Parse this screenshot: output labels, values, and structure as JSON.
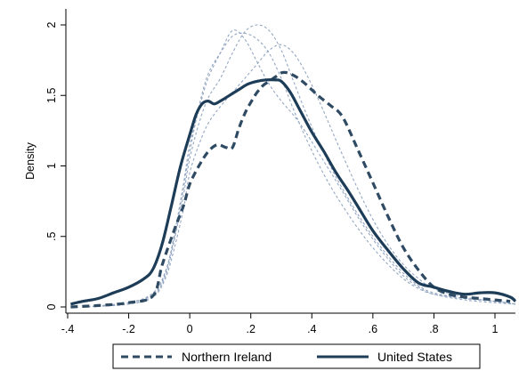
{
  "chart_data": {
    "type": "line",
    "title": "",
    "xlabel": "",
    "ylabel": "Density",
    "xlim": [
      -0.4,
      1.08
    ],
    "ylim": [
      0,
      2.1
    ],
    "x_ticks": [
      -0.4,
      -0.2,
      0,
      0.2,
      0.4,
      0.6,
      0.8,
      1
    ],
    "x_tick_labels": [
      "-.4",
      "-.2",
      "0",
      ".2",
      ".4",
      ".6",
      ".8",
      "1"
    ],
    "y_ticks": [
      0,
      0.5,
      1,
      1.5,
      2
    ],
    "y_tick_labels": [
      "0",
      ".5",
      "1",
      "1.5",
      "2"
    ],
    "grid": false,
    "legend_position": "bottom",
    "series": [
      {
        "name": "Northern Ireland",
        "style": "dashed",
        "color": "#2f4a63",
        "x": [
          -0.39,
          -0.3,
          -0.2,
          -0.12,
          -0.09,
          -0.05,
          -0.02,
          0.0,
          0.03,
          0.06,
          0.09,
          0.12,
          0.14,
          0.16,
          0.18,
          0.2,
          0.22,
          0.24,
          0.26,
          0.28,
          0.3,
          0.32,
          0.35,
          0.38,
          0.42,
          0.46,
          0.5,
          0.55,
          0.6,
          0.65,
          0.7,
          0.75,
          0.8,
          0.85,
          0.9,
          0.95,
          1.0,
          1.05
        ],
        "y": [
          0.0,
          0.01,
          0.03,
          0.08,
          0.3,
          0.55,
          0.72,
          0.87,
          1.0,
          1.1,
          1.15,
          1.13,
          1.13,
          1.26,
          1.37,
          1.45,
          1.52,
          1.57,
          1.6,
          1.63,
          1.66,
          1.66,
          1.63,
          1.58,
          1.5,
          1.43,
          1.35,
          1.12,
          0.88,
          0.64,
          0.42,
          0.26,
          0.14,
          0.09,
          0.07,
          0.06,
          0.05,
          0.04
        ]
      },
      {
        "name": "United States",
        "style": "solid",
        "color": "#1d3c57",
        "x": [
          -0.39,
          -0.35,
          -0.3,
          -0.25,
          -0.2,
          -0.15,
          -0.12,
          -0.09,
          -0.06,
          -0.03,
          0.0,
          0.02,
          0.04,
          0.06,
          0.08,
          0.1,
          0.13,
          0.16,
          0.19,
          0.22,
          0.25,
          0.28,
          0.3,
          0.33,
          0.36,
          0.4,
          0.44,
          0.48,
          0.52,
          0.56,
          0.6,
          0.65,
          0.7,
          0.75,
          0.8,
          0.85,
          0.9,
          0.95,
          1.0,
          1.05,
          1.08
        ],
        "y": [
          0.02,
          0.04,
          0.06,
          0.1,
          0.14,
          0.2,
          0.27,
          0.45,
          0.72,
          1.0,
          1.22,
          1.36,
          1.44,
          1.46,
          1.44,
          1.46,
          1.5,
          1.54,
          1.58,
          1.6,
          1.61,
          1.61,
          1.6,
          1.52,
          1.4,
          1.24,
          1.1,
          0.95,
          0.82,
          0.68,
          0.54,
          0.4,
          0.27,
          0.17,
          0.14,
          0.11,
          0.09,
          0.1,
          0.1,
          0.07,
          0.04
        ]
      },
      {
        "name": "",
        "style": "thin-dashed",
        "color": "#8ea2bf",
        "x": [
          -0.35,
          -0.2,
          -0.12,
          -0.08,
          -0.05,
          -0.02,
          0.0,
          0.03,
          0.06,
          0.1,
          0.14,
          0.18,
          0.22,
          0.26,
          0.3,
          0.34,
          0.38,
          0.42,
          0.46,
          0.5,
          0.55,
          0.6,
          0.65,
          0.7,
          0.75,
          0.8,
          0.9,
          1.0,
          1.08
        ],
        "y": [
          0.0,
          0.03,
          0.1,
          0.25,
          0.5,
          0.85,
          1.1,
          1.42,
          1.65,
          1.8,
          1.92,
          1.94,
          1.9,
          1.8,
          1.62,
          1.4,
          1.2,
          1.02,
          0.86,
          0.72,
          0.56,
          0.42,
          0.3,
          0.2,
          0.13,
          0.09,
          0.06,
          0.04,
          0.02
        ]
      },
      {
        "name": "",
        "style": "thin-dashed",
        "color": "#8ea2bf",
        "x": [
          -0.35,
          -0.2,
          -0.12,
          -0.08,
          -0.05,
          -0.02,
          0.0,
          0.03,
          0.06,
          0.1,
          0.14,
          0.18,
          0.22,
          0.26,
          0.3,
          0.34,
          0.38,
          0.42,
          0.46,
          0.5,
          0.55,
          0.6,
          0.65,
          0.7,
          0.75,
          0.8,
          0.9,
          1.0,
          1.08
        ],
        "y": [
          0.0,
          0.02,
          0.08,
          0.22,
          0.48,
          0.8,
          1.05,
          1.3,
          1.48,
          1.62,
          1.8,
          1.95,
          2.0,
          1.96,
          1.82,
          1.6,
          1.38,
          1.18,
          1.0,
          0.84,
          0.66,
          0.5,
          0.36,
          0.24,
          0.15,
          0.1,
          0.06,
          0.04,
          0.02
        ]
      },
      {
        "name": "",
        "style": "thin-dashed",
        "color": "#8ea2bf",
        "x": [
          -0.35,
          -0.2,
          -0.12,
          -0.08,
          -0.05,
          -0.02,
          0.0,
          0.03,
          0.06,
          0.1,
          0.14,
          0.18,
          0.22,
          0.26,
          0.3,
          0.34,
          0.38,
          0.42,
          0.46,
          0.5,
          0.55,
          0.6,
          0.65,
          0.7,
          0.75,
          0.8,
          0.9,
          1.0,
          1.08
        ],
        "y": [
          0.0,
          0.02,
          0.07,
          0.2,
          0.42,
          0.7,
          0.95,
          1.15,
          1.3,
          1.42,
          1.52,
          1.62,
          1.72,
          1.82,
          1.86,
          1.8,
          1.66,
          1.48,
          1.28,
          1.08,
          0.84,
          0.62,
          0.44,
          0.3,
          0.2,
          0.13,
          0.07,
          0.04,
          0.02
        ]
      },
      {
        "name": "",
        "style": "thin-dashed",
        "color": "#8ea2bf",
        "x": [
          -0.35,
          -0.2,
          -0.12,
          -0.08,
          -0.05,
          -0.02,
          0.0,
          0.03,
          0.06,
          0.1,
          0.14,
          0.18,
          0.22,
          0.26,
          0.3,
          0.34,
          0.38,
          0.42,
          0.46,
          0.5,
          0.55,
          0.6,
          0.65,
          0.7,
          0.75,
          0.8,
          0.9,
          1.0,
          1.08
        ],
        "y": [
          0.0,
          0.03,
          0.09,
          0.24,
          0.52,
          0.88,
          1.15,
          1.4,
          1.62,
          1.8,
          1.96,
          1.9,
          1.74,
          1.58,
          1.46,
          1.36,
          1.24,
          1.1,
          0.96,
          0.82,
          0.64,
          0.48,
          0.34,
          0.22,
          0.14,
          0.09,
          0.05,
          0.03,
          0.02
        ]
      }
    ]
  },
  "legend": {
    "items": [
      {
        "label": "Northern Ireland",
        "style": "dashed"
      },
      {
        "label": "United States",
        "style": "solid"
      }
    ]
  },
  "colors": {
    "axis": "#000000",
    "primary_dark": "#1d3c57",
    "secondary_dark": "#2f4a63",
    "muted": "#8ea2bf"
  }
}
